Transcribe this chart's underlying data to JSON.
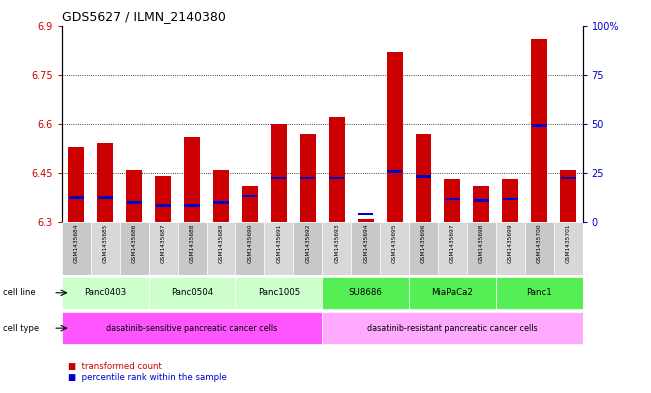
{
  "title": "GDS5627 / ILMN_2140380",
  "samples": [
    "GSM1435684",
    "GSM1435685",
    "GSM1435686",
    "GSM1435687",
    "GSM1435688",
    "GSM1435689",
    "GSM1435690",
    "GSM1435691",
    "GSM1435692",
    "GSM1435693",
    "GSM1435694",
    "GSM1435695",
    "GSM1435696",
    "GSM1435697",
    "GSM1435698",
    "GSM1435699",
    "GSM1435700",
    "GSM1435701"
  ],
  "bar_values": [
    6.53,
    6.54,
    6.46,
    6.44,
    6.56,
    6.46,
    6.41,
    6.6,
    6.57,
    6.62,
    6.31,
    6.82,
    6.57,
    6.43,
    6.41,
    6.43,
    6.86,
    6.46
  ],
  "percentile_values": [
    6.375,
    6.375,
    6.36,
    6.35,
    6.35,
    6.36,
    6.38,
    6.435,
    6.435,
    6.435,
    6.325,
    6.455,
    6.44,
    6.37,
    6.365,
    6.37,
    6.595,
    6.435
  ],
  "ymin": 6.3,
  "ymax": 6.9,
  "yticks": [
    6.3,
    6.45,
    6.6,
    6.75,
    6.9
  ],
  "ytick_labels": [
    "6.3",
    "6.45",
    "6.6",
    "6.75",
    "6.9"
  ],
  "right_yticks": [
    0,
    25,
    50,
    75,
    100
  ],
  "right_ytick_labels": [
    "0",
    "25",
    "50",
    "75",
    "100%"
  ],
  "cell_lines": [
    {
      "label": "Panc0403",
      "start": 0,
      "end": 3,
      "color": "#ccffcc"
    },
    {
      "label": "Panc0504",
      "start": 3,
      "end": 6,
      "color": "#ccffcc"
    },
    {
      "label": "Panc1005",
      "start": 6,
      "end": 9,
      "color": "#ccffcc"
    },
    {
      "label": "SU8686",
      "start": 9,
      "end": 12,
      "color": "#55ee55"
    },
    {
      "label": "MiaPaCa2",
      "start": 12,
      "end": 15,
      "color": "#55ee55"
    },
    {
      "label": "Panc1",
      "start": 15,
      "end": 18,
      "color": "#55ee55"
    }
  ],
  "cell_types": [
    {
      "label": "dasatinib-sensitive pancreatic cancer cells",
      "start": 0,
      "end": 9,
      "color": "#ff55ff"
    },
    {
      "label": "dasatinib-resistant pancreatic cancer cells",
      "start": 9,
      "end": 18,
      "color": "#ffaaff"
    }
  ],
  "bar_color": "#cc0000",
  "percentile_color": "#0000cc",
  "bar_width": 0.55,
  "grid_lines": [
    6.45,
    6.6,
    6.75
  ],
  "legend_items": [
    {
      "label": "transformed count",
      "color": "#cc0000"
    },
    {
      "label": "percentile rank within the sample",
      "color": "#0000cc"
    }
  ]
}
